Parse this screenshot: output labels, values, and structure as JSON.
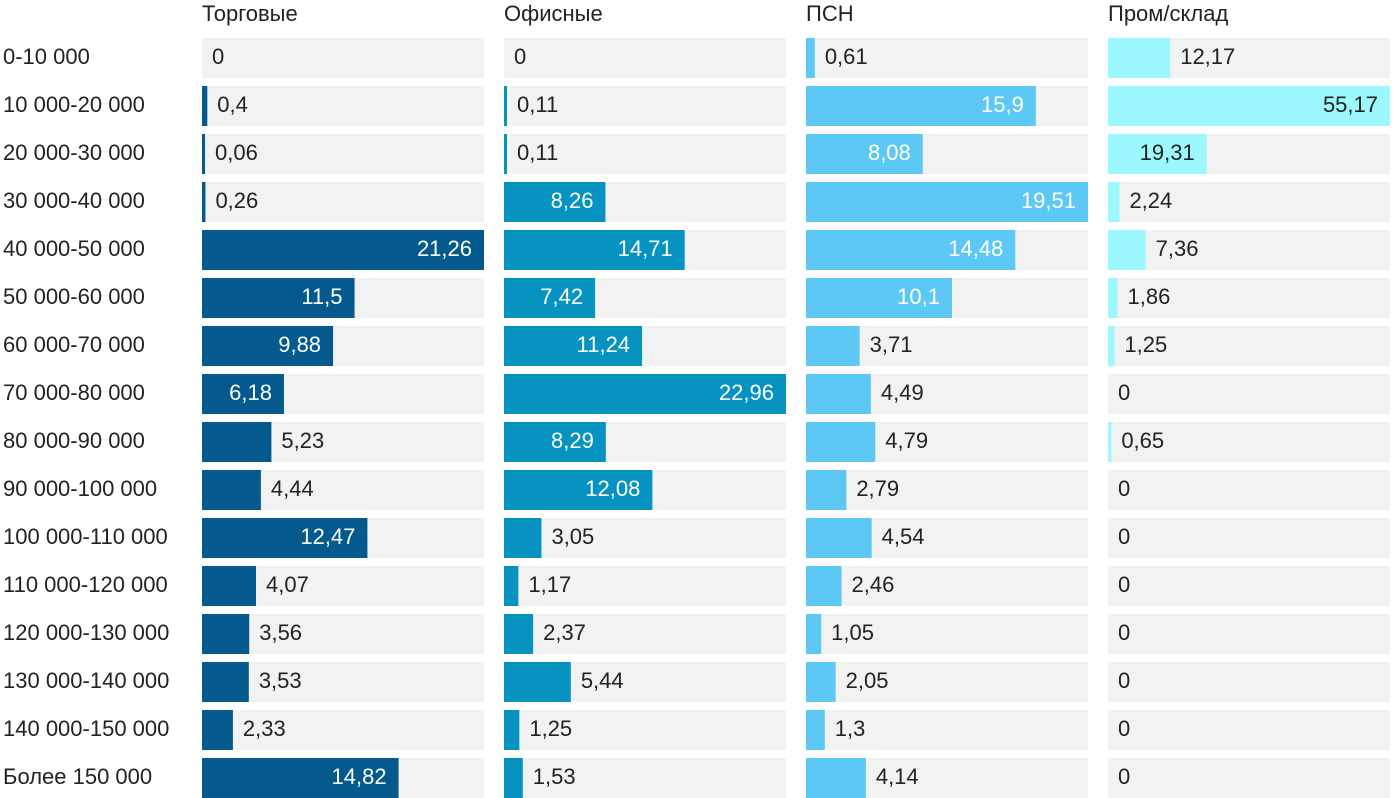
{
  "chart_data": {
    "type": "bar",
    "orientation": "horizontal",
    "layout": "small-multiples",
    "categories": [
      "0-10 000",
      "10 000-20 000",
      "20 000-30 000",
      "30 000-40 000",
      "40 000-50 000",
      "50 000-60 000",
      "60 000-70 000",
      "70 000-80 000",
      "80 000-90 000",
      "90 000-100 000",
      "100 000-110 000",
      "110 000-120 000",
      "120 000-130 000",
      "130 000-140 000",
      "140 000-150 000",
      "Более 150 000"
    ],
    "series": [
      {
        "name": "Торговые",
        "color": "#045a8d",
        "max": 21.26,
        "values": [
          0,
          0.4,
          0.06,
          0.26,
          21.26,
          11.5,
          9.88,
          6.18,
          5.23,
          4.44,
          12.47,
          4.07,
          3.56,
          3.53,
          2.33,
          14.82
        ],
        "labels": [
          "0",
          "0,4",
          "0,06",
          "0,26",
          "21,26",
          "11,5",
          "9,88",
          "6,18",
          "5,23",
          "4,44",
          "12,47",
          "4,07",
          "3,56",
          "3,53",
          "2,33",
          "14,82"
        ]
      },
      {
        "name": "Офисные",
        "color": "#0693c1",
        "max": 22.96,
        "values": [
          0,
          0.11,
          0.11,
          8.26,
          14.71,
          7.42,
          11.24,
          22.96,
          8.29,
          12.08,
          3.05,
          1.17,
          2.37,
          5.44,
          1.25,
          1.53
        ],
        "labels": [
          "0",
          "0,11",
          "0,11",
          "8,26",
          "14,71",
          "7,42",
          "11,24",
          "22,96",
          "8,29",
          "12,08",
          "3,05",
          "1,17",
          "2,37",
          "5,44",
          "1,25",
          "1,53"
        ]
      },
      {
        "name": "ПСН",
        "color": "#5ec8f5",
        "max": 19.51,
        "values": [
          0.61,
          15.9,
          8.08,
          19.51,
          14.48,
          10.1,
          3.71,
          4.49,
          4.79,
          2.79,
          4.54,
          2.46,
          1.05,
          2.05,
          1.3,
          4.14
        ],
        "labels": [
          "0,61",
          "15,9",
          "8,08",
          "19,51",
          "14,48",
          "10,1",
          "3,71",
          "4,49",
          "4,79",
          "2,79",
          "4,54",
          "2,46",
          "1,05",
          "2,05",
          "1,3",
          "4,14"
        ]
      },
      {
        "name": "Пром/склад",
        "color": "#9cf8fc",
        "max": 55.17,
        "values": [
          12.17,
          55.17,
          19.31,
          2.24,
          7.36,
          1.86,
          1.25,
          0,
          0.65,
          0,
          0,
          0,
          0,
          0,
          0,
          0
        ],
        "labels": [
          "12,17",
          "55,17",
          "19,31",
          "2,24",
          "7,36",
          "1,86",
          "1,25",
          "0",
          "0,65",
          "0",
          "0",
          "0",
          "0",
          "0",
          "0",
          "0"
        ]
      }
    ],
    "background_color": "#f2f2f2",
    "label_inside_color": "#ffffff",
    "label_outside_color": "#222222"
  }
}
